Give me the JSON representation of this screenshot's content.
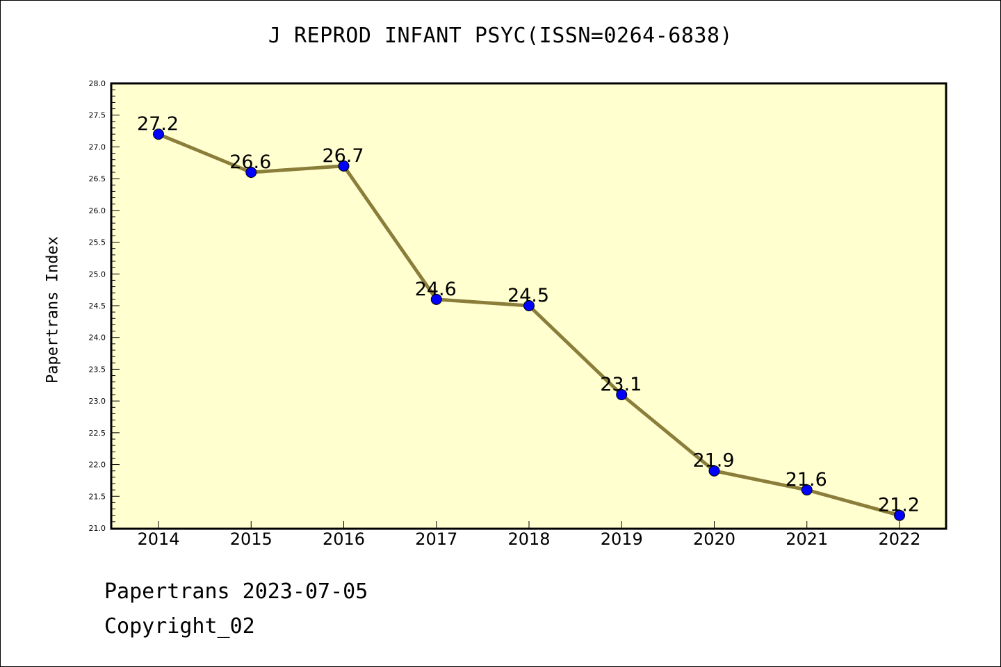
{
  "chart_data": {
    "type": "line",
    "title": "J REPROD INFANT PSYC(ISSN=0264-6838)",
    "xlabel": "",
    "ylabel": "Papertrans Index",
    "categories": [
      "2014",
      "2015",
      "2016",
      "2017",
      "2018",
      "2019",
      "2020",
      "2021",
      "2022"
    ],
    "series": [
      {
        "values": [
          27.2,
          26.6,
          26.7,
          24.6,
          24.5,
          23.1,
          21.9,
          21.6,
          21.2
        ],
        "labels": [
          "27.2",
          "26.6",
          "26.7",
          "24.6",
          "24.5",
          "23.1",
          "21.9",
          "21.6",
          "21.2"
        ],
        "line_color": "#8b7d3a",
        "marker_color": "#0000ff"
      }
    ],
    "ylim": [
      21.0,
      28.0
    ],
    "yticks": [
      "21.0",
      "21.5",
      "22.0",
      "22.5",
      "23.0",
      "23.5",
      "24.0",
      "24.5",
      "25.0",
      "25.5",
      "26.0",
      "26.5",
      "27.0",
      "27.5",
      "28.0"
    ],
    "plot_background": "#ffffd0",
    "grid": false,
    "legend": "none"
  },
  "footer": {
    "date_text": "Papertrans 2023-07-05",
    "copyright_text": "Copyright_02"
  }
}
